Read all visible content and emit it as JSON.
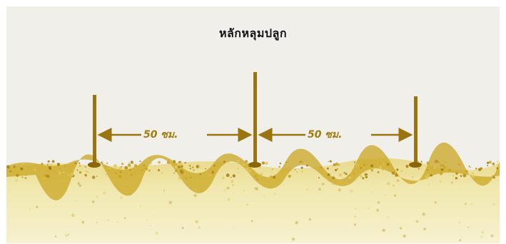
{
  "diagram": {
    "title": "หลักหลุมปลูก",
    "dimensions": [
      {
        "label": "50 ซม."
      },
      {
        "label": "50 ซม."
      }
    ],
    "colors": {
      "background": "#f0efea",
      "stake": "#9a7410",
      "soil": "#efe5a3",
      "soil_dark": "#b38a13",
      "text": "#111111"
    }
  }
}
